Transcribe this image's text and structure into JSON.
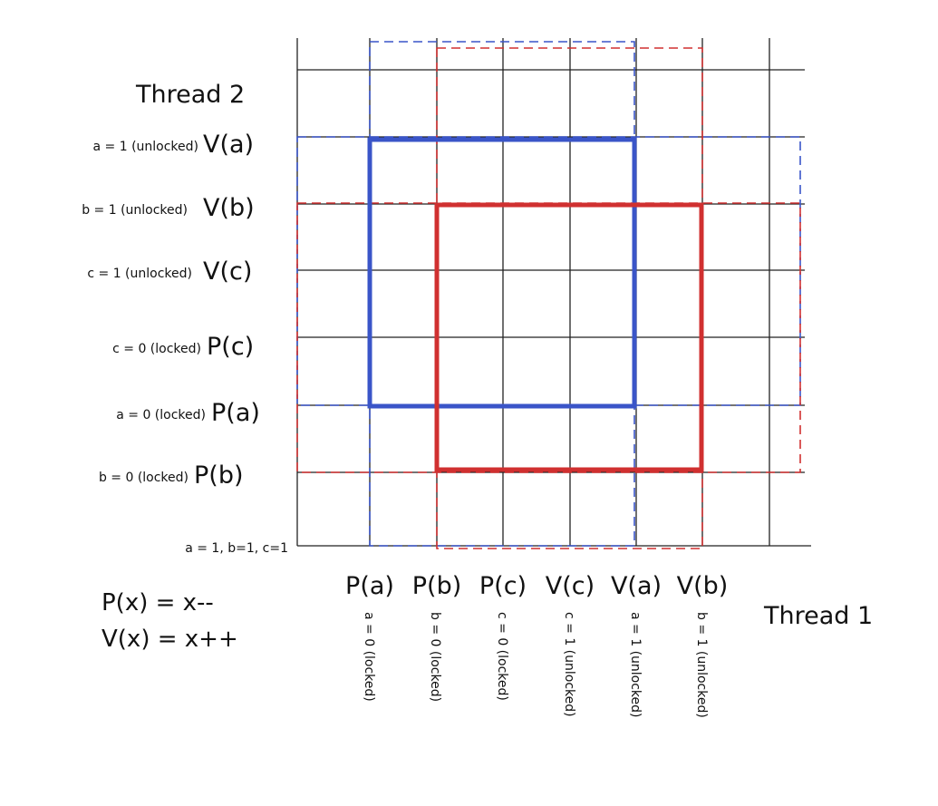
{
  "thread_y": {
    "title": "Thread 2",
    "rows": [
      {
        "op": "V(a)",
        "note": "a = 1 (unlocked)"
      },
      {
        "op": "V(b)",
        "note": "b = 1 (unlocked)"
      },
      {
        "op": "V(c)",
        "note": "c = 1 (unlocked)"
      },
      {
        "op": "P(c)",
        "note": "c = 0 (locked)"
      },
      {
        "op": "P(a)",
        "note": "a = 0 (locked)"
      },
      {
        "op": "P(b)",
        "note": "b = 0 (locked)"
      }
    ]
  },
  "thread_x": {
    "title": "Thread 1",
    "columns": [
      {
        "op": "P(a)",
        "note": "a = 0 (locked)"
      },
      {
        "op": "P(b)",
        "note": "b = 0 (locked)"
      },
      {
        "op": "P(c)",
        "note": "c = 0 (locked)"
      },
      {
        "op": "V(c)",
        "note": "c = 1 (unlocked)"
      },
      {
        "op": "V(a)",
        "note": "a = 1 (unlocked)"
      },
      {
        "op": "V(b)",
        "note": "b = 1 (unlocked)"
      }
    ]
  },
  "origin_label": "a = 1, b=1, c=1",
  "legend": {
    "p_def": "P(x) = x--",
    "v_def": "V(x) = x++"
  },
  "colors": {
    "grid": "#222222",
    "region_a": "#3a55c8",
    "region_b": "#d03030"
  }
}
